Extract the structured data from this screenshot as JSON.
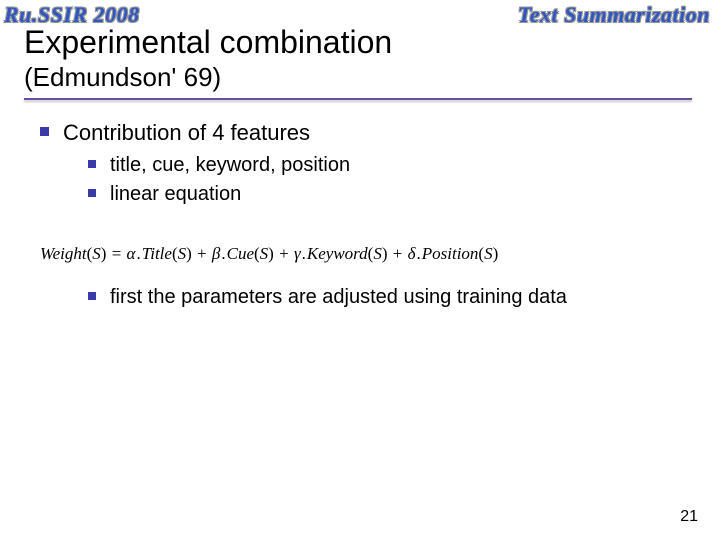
{
  "header": {
    "left": "Ru.SSIR 2008",
    "right": "Text Summarization"
  },
  "title": "Experimental combination",
  "subtitle": "(Edmundson' 69)",
  "rule_color": "#6a4ea0",
  "bullet_color": "#3a3aa8",
  "content": {
    "level1": "Contribution of 4 features",
    "level2": [
      "title, cue, keyword, position",
      "linear equation"
    ]
  },
  "formula": {
    "lhs_fn": "Weight",
    "arg": "S",
    "terms": [
      {
        "coef": "α",
        "fn": "Title"
      },
      {
        "coef": "β",
        "fn": "Cue"
      },
      {
        "coef": "γ",
        "fn": "Keyword"
      },
      {
        "coef": "δ",
        "fn": "Position"
      }
    ]
  },
  "lower_bullet": "first the parameters are adjusted using training data",
  "page_number": "21"
}
